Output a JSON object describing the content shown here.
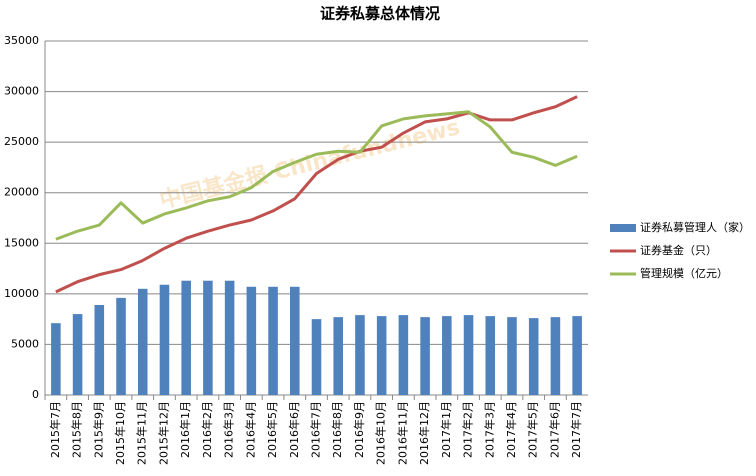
{
  "chart_data": {
    "type": "combo",
    "title": "证券私募总体情况",
    "watermark": "中国基金报 Chinafundnews",
    "categories": [
      "2015年7月",
      "2015年8月",
      "2015年9月",
      "2015年10月",
      "2015年11月",
      "2015年12月",
      "2016年1月",
      "2016年2月",
      "2016年3月",
      "2016年4月",
      "2016年5月",
      "2016年6月",
      "2016年7月",
      "2016年8月",
      "2016年9月",
      "2016年10月",
      "2016年11月",
      "2016年12月",
      "2017年1月",
      "2017年2月",
      "2017年3月",
      "2017年4月",
      "2017年5月",
      "2017年6月",
      "2017年7月"
    ],
    "series": [
      {
        "name": "证券私募管理人（家）",
        "type": "bar",
        "color": "#4f81bd",
        "values": [
          7100,
          8000,
          8900,
          9600,
          10500,
          10900,
          11300,
          11300,
          11300,
          10700,
          10700,
          10700,
          7500,
          7700,
          7900,
          7800,
          7900,
          7700,
          7800,
          7900,
          7800,
          7700,
          7600,
          7700,
          7800
        ]
      },
      {
        "name": "证券基金（只）",
        "type": "line",
        "color": "#c0504d",
        "values": [
          10200,
          11200,
          11900,
          12400,
          13300,
          14500,
          15500,
          16200,
          16800,
          17300,
          18200,
          19400,
          21900,
          23300,
          24100,
          24500,
          25900,
          27000,
          27300,
          27900,
          27200,
          27200,
          27900,
          28500,
          29500
        ]
      },
      {
        "name": "管理规模（亿元）",
        "type": "line",
        "color": "#9bbb59",
        "values": [
          15400,
          16200,
          16800,
          19000,
          17000,
          17900,
          18500,
          19200,
          19600,
          20500,
          22100,
          23000,
          23800,
          24100,
          24000,
          26600,
          27300,
          27600,
          27800,
          28000,
          26500,
          24000,
          23500,
          22700,
          23600
        ]
      }
    ],
    "ylim": [
      0,
      35000
    ],
    "yticks": [
      0,
      5000,
      10000,
      15000,
      20000,
      25000,
      30000,
      35000
    ],
    "grid": true,
    "legend": "right"
  }
}
